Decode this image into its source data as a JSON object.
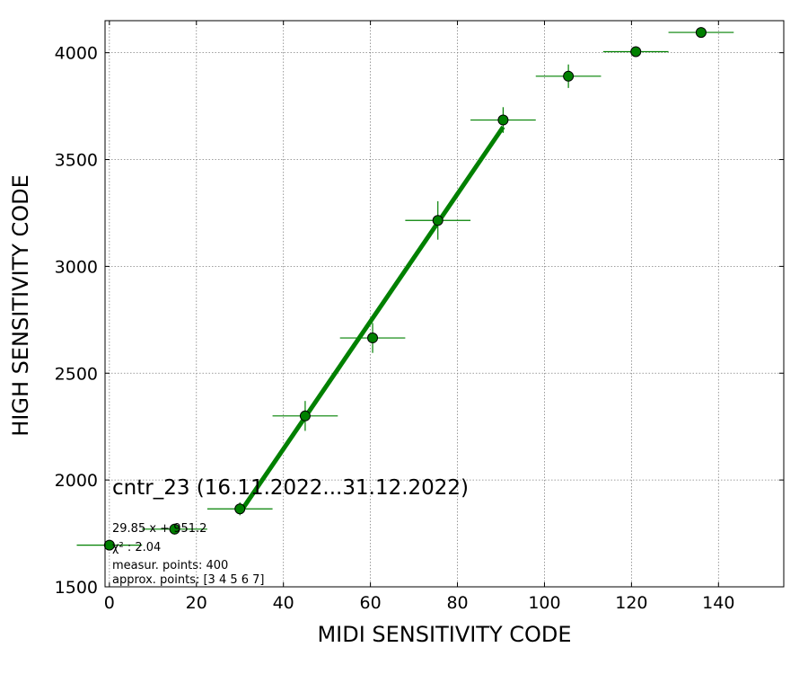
{
  "chart_data": {
    "type": "scatter",
    "xlabel": "MIDI SENSITIVITY CODE",
    "ylabel": "HIGH SENSITIVITY CODE",
    "xlim": [
      -1,
      155
    ],
    "ylim": [
      1500,
      4150
    ],
    "xticks": [
      0,
      20,
      40,
      60,
      80,
      100,
      120,
      140
    ],
    "yticks": [
      1500,
      2000,
      2500,
      3000,
      3500,
      4000
    ],
    "grid": true,
    "colors": {
      "marker": "#008000",
      "marker_edge": "#000000",
      "fit_line": "#008000",
      "errorbar": "#008000",
      "grid": "#808080"
    },
    "points": [
      {
        "x": 0,
        "y": 1695,
        "xerr": 7.5,
        "yerr": 20
      },
      {
        "x": 15,
        "y": 1770,
        "xerr": 7.5,
        "yerr": 25
      },
      {
        "x": 30,
        "y": 1865,
        "xerr": 7.5,
        "yerr": 30
      },
      {
        "x": 45,
        "y": 2300,
        "xerr": 7.5,
        "yerr": 70
      },
      {
        "x": 60.5,
        "y": 2665,
        "xerr": 7.5,
        "yerr": 70
      },
      {
        "x": 75.5,
        "y": 3215,
        "xerr": 7.5,
        "yerr": 90
      },
      {
        "x": 90.5,
        "y": 3685,
        "xerr": 7.5,
        "yerr": 60
      },
      {
        "x": 105.5,
        "y": 3890,
        "xerr": 7.5,
        "yerr": 55
      },
      {
        "x": 121,
        "y": 4005,
        "xerr": 7.5,
        "yerr": 20
      },
      {
        "x": 136,
        "y": 4095,
        "xerr": 7.5,
        "yerr": 10
      }
    ],
    "fit": {
      "slope": 29.85,
      "intercept": 951.2,
      "x_range": [
        30,
        90.5
      ]
    },
    "annotations": {
      "title": "cntr_23 (16.11.2022...31.12.2022)",
      "fit_eq": "29.85 x + 951.2",
      "chi2": "χ² : 2.04",
      "measur": "measur. points: 400",
      "approx": "approx. points: [3 4 5 6 7]"
    }
  }
}
